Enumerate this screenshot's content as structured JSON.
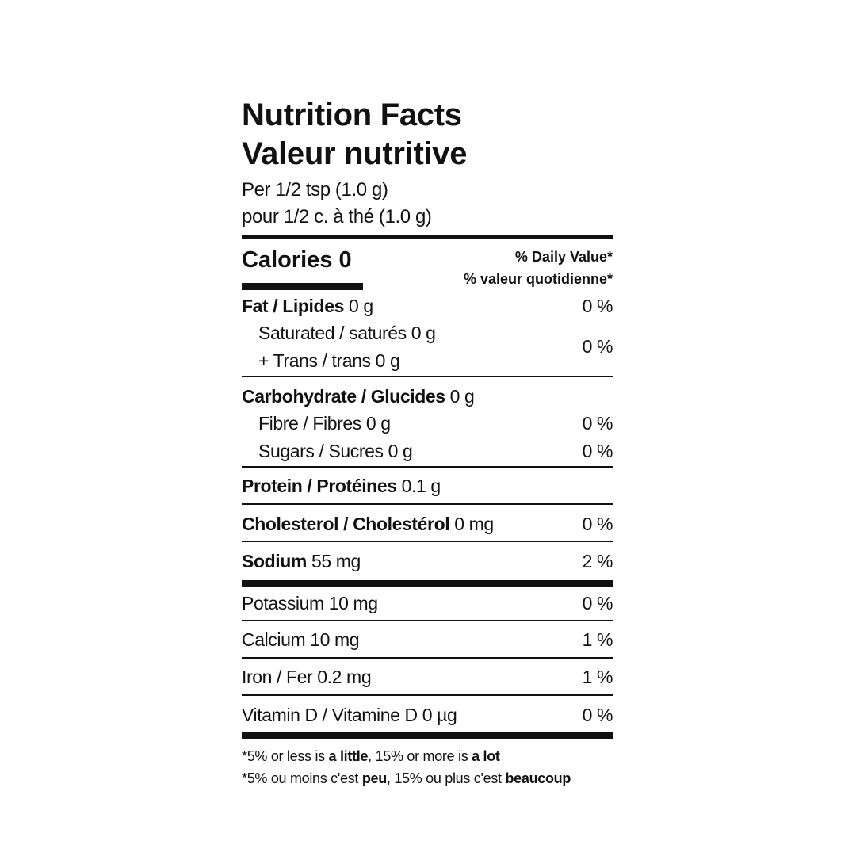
{
  "title_en": "Nutrition Facts",
  "title_fr": "Valeur nutritive",
  "serving_en": "Per 1/2 tsp (1.0 g)",
  "serving_fr": "pour 1/2 c. à thé (1.0 g)",
  "calories": "Calories 0",
  "dv_en": "% Daily Value*",
  "dv_fr": "% valeur quotidienne*",
  "fat": {
    "label": "Fat / Lipides",
    "amount": "0 g",
    "dv": "0 %"
  },
  "saturated": {
    "label": "Saturated / saturés 0 g"
  },
  "trans": {
    "label": "+ Trans / trans 0 g",
    "dv": "0 %"
  },
  "carbohydrate": {
    "label": "Carbohydrate / Glucides",
    "amount": "0 g"
  },
  "fibre": {
    "label": "Fibre / Fibres 0 g",
    "dv": "0 %"
  },
  "sugars": {
    "label": "Sugars / Sucres 0 g",
    "dv": "0 %"
  },
  "protein": {
    "label": "Protein / Protéines",
    "amount": "0.1 g"
  },
  "cholesterol": {
    "label": "Cholesterol / Cholestérol",
    "amount": "0 mg",
    "dv": "0 %"
  },
  "sodium": {
    "label": "Sodium",
    "amount": "55 mg",
    "dv": "2 %"
  },
  "potassium": {
    "label": "Potassium 10 mg",
    "dv": "0 %"
  },
  "calcium": {
    "label": "Calcium 10 mg",
    "dv": "1 %"
  },
  "iron": {
    "label": "Iron / Fer 0.2 mg",
    "dv": "1 %"
  },
  "vitamin_d": {
    "label": "Vitamin D / Vitamine D 0 µg",
    "dv": "0 %"
  },
  "footnote_en": {
    "a": "*5% or less is ",
    "b": "a little",
    "c": ", 15% or more is ",
    "d": "a lot"
  },
  "footnote_fr": {
    "a": "*5% ou moins c'est ",
    "b": "peu",
    "c": ", 15% ou plus c'est ",
    "d": "beaucoup"
  }
}
